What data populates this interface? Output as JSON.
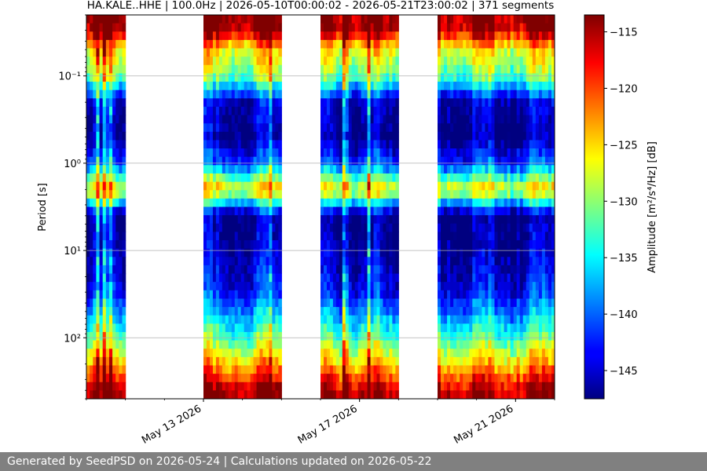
{
  "chart_data": {
    "type": "heatmap",
    "title": "HA.KALE..HHE | 100.0Hz | 2026-05-10T00:00:02 - 2026-05-21T23:00:02 | 371 segments",
    "xlabel": "",
    "ylabel": "Period [s]",
    "x_axis": {
      "type": "date",
      "range": [
        "2026-05-10",
        "2026-05-22"
      ],
      "ticks": [
        "2026-05-13",
        "2026-05-17",
        "2026-05-21"
      ],
      "tick_labels": [
        "May 13 2026",
        "May 17 2026",
        "May 21 2026"
      ]
    },
    "y_axis": {
      "scale": "log",
      "inverted": true,
      "range": [
        0.02,
        500
      ],
      "ticks": [
        0.1,
        1,
        10,
        100
      ],
      "tick_labels": [
        "10⁻¹",
        "10⁰",
        "10¹",
        "10²"
      ],
      "grid": true
    },
    "colorbar": {
      "colormap": "jet",
      "label": "Amplitude [m²/s⁴/Hz] [dB]",
      "range": [
        -147.5,
        -113.5
      ],
      "ticks": [
        -115,
        -120,
        -125,
        -130,
        -135,
        -140,
        -145
      ],
      "tick_labels": [
        "−115",
        "−120",
        "−125",
        "−130",
        "−135",
        "−140",
        "−145"
      ]
    },
    "data_periods": [
      {
        "start": "2026-05-10",
        "end": "2026-05-11"
      },
      {
        "start": "2026-05-13",
        "end": "2026-05-15"
      },
      {
        "start": "2026-05-16",
        "end": "2026-05-18"
      },
      {
        "start": "2026-05-19",
        "end": "2026-05-22"
      }
    ],
    "amplitude_profile_db": [
      {
        "period_s": 0.025,
        "db": -114
      },
      {
        "period_s": 0.03,
        "db": -115
      },
      {
        "period_s": 0.05,
        "db": -126
      },
      {
        "period_s": 0.1,
        "db": -131
      },
      {
        "period_s": 0.2,
        "db": -145
      },
      {
        "period_s": 0.5,
        "db": -147
      },
      {
        "period_s": 1,
        "db": -141
      },
      {
        "period_s": 2,
        "db": -125
      },
      {
        "period_s": 4,
        "db": -147
      },
      {
        "period_s": 10,
        "db": -146
      },
      {
        "period_s": 30,
        "db": -143
      },
      {
        "period_s": 100,
        "db": -132
      },
      {
        "period_s": 200,
        "db": -124
      },
      {
        "period_s": 400,
        "db": -115
      }
    ]
  },
  "footer": {
    "text": "Generated by SeedPSD on 2026-05-24 | Calculations updated on 2026-05-22"
  }
}
